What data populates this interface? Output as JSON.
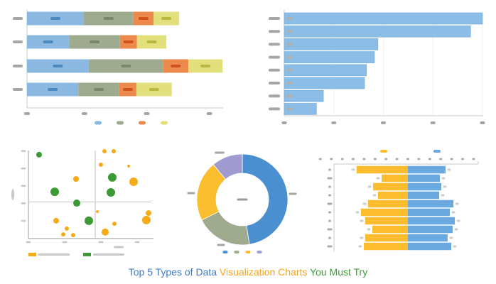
{
  "title": {
    "part1": "Top 5 Types of Data ",
    "part2": "Visualization Charts ",
    "part3": "You Must Try",
    "colors": {
      "part1": "#3d7cc9",
      "part2": "#f5a623",
      "part3": "#3aa03a"
    }
  },
  "chart_data": [
    {
      "type": "bar",
      "orientation": "horizontal",
      "stacked": true,
      "categories": [
        "",
        "",
        "",
        ""
      ],
      "series": [
        {
          "values": [
            0.93,
            0.69,
            1.01,
            0.84
          ],
          "color": "#8ab8e0",
          "label_color": "#4a8ac0"
        },
        {
          "values": [
            0.81,
            0.83,
            1.22,
            0.67
          ],
          "color": "#9eab8f",
          "label_color": "#78866e"
        },
        {
          "values": [
            0.33,
            0.28,
            0.41,
            0.28
          ],
          "color": "#ec8a4e",
          "label_color": "#d0501e"
        },
        {
          "values": [
            0.42,
            0.48,
            0.56,
            0.58
          ],
          "color": "#e2e07c",
          "label_color": "#b8b840"
        }
      ],
      "xlim": [
        0,
        3.2
      ],
      "xticks": [
        0,
        1,
        2,
        3
      ],
      "legend": "bottom"
    },
    {
      "type": "bar",
      "orientation": "horizontal",
      "categories": [
        "",
        "",
        "",
        "",
        "",
        "",
        "",
        ""
      ],
      "values": [
        4.0,
        3.76,
        1.89,
        1.82,
        1.66,
        1.62,
        0.79,
        0.65
      ],
      "color": "#8bbde6",
      "xlim": [
        0,
        4
      ],
      "xticks": [
        0,
        1,
        2,
        3,
        4
      ],
      "grid": true
    },
    {
      "type": "scatter",
      "bubble": true,
      "series": [
        {
          "color": "#f5ab17",
          "points": [
            [
              1.34,
              3.41,
              4
            ],
            [
              2.14,
              5.0,
              3
            ],
            [
              2.4,
              5.0,
              3
            ],
            [
              2.04,
              4.23,
              3
            ],
            [
              2.82,
              4.15,
              2
            ],
            [
              2.96,
              3.25,
              6
            ],
            [
              0.78,
              1.02,
              4
            ],
            [
              1.08,
              0.57,
              3
            ],
            [
              0.98,
              0.24,
              3
            ],
            [
              1.26,
              0.2,
              3
            ],
            [
              1.94,
              1.54,
              2
            ],
            [
              2.42,
              0.85,
              3
            ],
            [
              2.16,
              0.37,
              5
            ],
            [
              3.32,
              1.06,
              6
            ],
            [
              3.38,
              1.46,
              4
            ]
          ]
        },
        {
          "color": "#3c9a35",
          "points": [
            [
              0.3,
              4.8,
              4
            ],
            [
              0.74,
              2.68,
              6
            ],
            [
              1.36,
              2.03,
              5
            ],
            [
              1.7,
              1.02,
              6
            ],
            [
              2.36,
              3.5,
              6
            ],
            [
              2.32,
              2.64,
              6
            ]
          ]
        }
      ],
      "xlim": [
        0,
        3.5
      ],
      "ylim": [
        0,
        5.05
      ],
      "quadrant_lines": {
        "x": 1.88,
        "y": 2.1
      },
      "legend": "bottom-left"
    },
    {
      "type": "pie",
      "donut": true,
      "values": [
        47.5,
        20,
        21.5,
        11
      ],
      "colors": [
        "#4a8fd0",
        "#9eab8f",
        "#f9bd2e",
        "#9f9bd0"
      ],
      "legend": "bottom"
    },
    {
      "type": "bar",
      "orientation": "horizontal",
      "diverging": true,
      "categories": [
        "",
        "",
        "",
        "",
        "",
        "",
        "",
        "",
        "",
        ""
      ],
      "series": [
        {
          "color": "#fbbd2e",
          "values": [
            -4.68,
            -2.4,
            -3.18,
            -2.73,
            -3.64,
            -4.29,
            -3.9,
            -3.25,
            -3.9,
            -4.03
          ]
        },
        {
          "color": "#6aa8e0",
          "values": [
            3.44,
            2.92,
            3.05,
            2.86,
            4.16,
            3.83,
            4.29,
            4.09,
            3.63,
            3.96
          ]
        }
      ],
      "xlim": [
        -8,
        6.5
      ],
      "legend": "top"
    }
  ]
}
